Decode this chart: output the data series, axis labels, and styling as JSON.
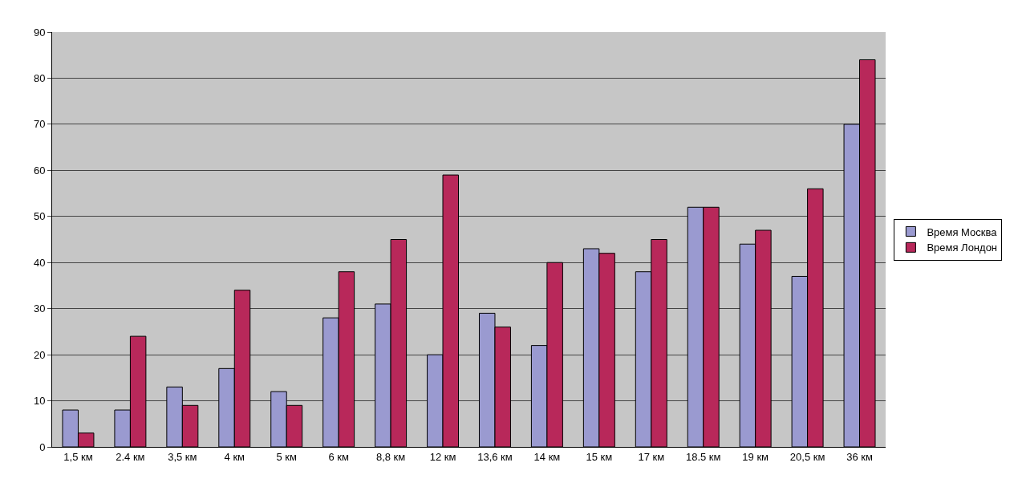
{
  "chart_data": {
    "type": "bar",
    "categories": [
      "1,5 км",
      "2.4 км",
      "3,5 км",
      "4 км",
      "5 км",
      "6 км",
      "8,8 км",
      "12 км",
      "13,6 км",
      "14 км",
      "15 км",
      "17 км",
      "18.5 км",
      "19 км",
      "20,5 км",
      "36 км"
    ],
    "series": [
      {
        "name": "Время Москва",
        "color": "#9a9ad0",
        "values": [
          8,
          8,
          13,
          17,
          12,
          28,
          31,
          20,
          29,
          22,
          43,
          38,
          52,
          44,
          37,
          70
        ]
      },
      {
        "name": "Время Лондон",
        "color": "#b8285a",
        "values": [
          3,
          24,
          9,
          34,
          9,
          38,
          45,
          59,
          26,
          40,
          42,
          45,
          52,
          47,
          56,
          84
        ]
      }
    ],
    "ylim": [
      0,
      90
    ],
    "yticks": [
      0,
      10,
      20,
      30,
      40,
      50,
      60,
      70,
      80,
      90
    ],
    "grid": "y",
    "legend": "right"
  }
}
